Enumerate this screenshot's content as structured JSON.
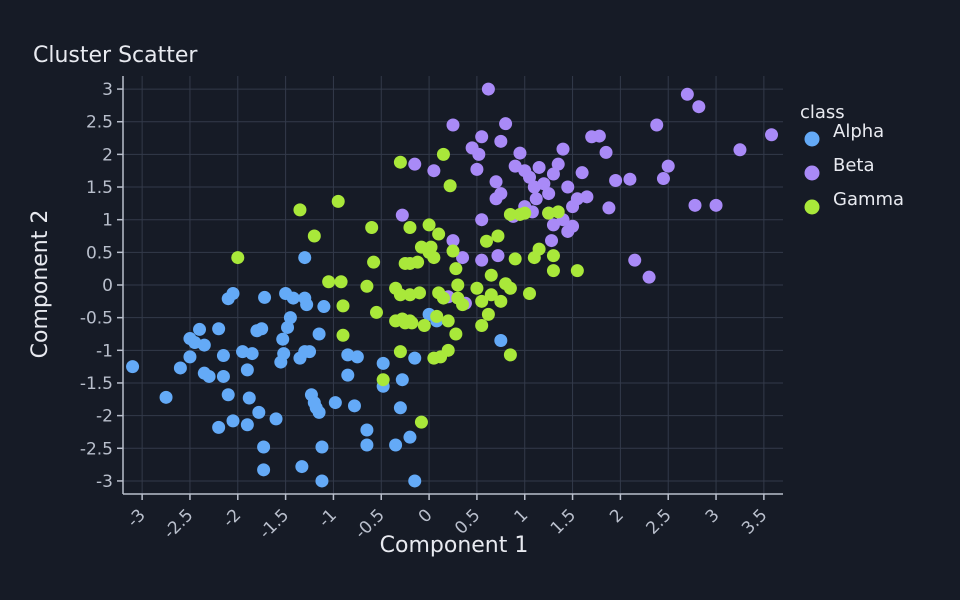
{
  "chart_data": {
    "type": "scatter",
    "title": "Cluster Scatter",
    "xlabel": "Component 1",
    "ylabel": "Component 2",
    "xlim": [
      -3.2,
      3.7
    ],
    "ylim": [
      -3.2,
      3.2
    ],
    "x_ticks": [
      -3,
      -2.5,
      -2,
      -1.5,
      -1,
      -0.5,
      0,
      0.5,
      1,
      1.5,
      2,
      2.5,
      3,
      3.5
    ],
    "y_ticks": [
      3,
      2.5,
      2,
      1.5,
      1,
      0.5,
      0,
      -0.5,
      -1,
      -1.5,
      -2,
      -2.5,
      -3
    ],
    "grid": true,
    "legend": {
      "title": "class",
      "placement": "right"
    },
    "series": [
      {
        "name": "Alpha",
        "color": "#64aaf7",
        "points": [
          [
            -3.1,
            -1.25
          ],
          [
            -2.75,
            -1.72
          ],
          [
            -2.6,
            -1.27
          ],
          [
            -2.5,
            -0.82
          ],
          [
            -2.5,
            -1.1
          ],
          [
            -2.45,
            -0.88
          ],
          [
            -2.4,
            -0.68
          ],
          [
            -2.35,
            -0.92
          ],
          [
            -2.35,
            -1.35
          ],
          [
            -2.3,
            -1.4
          ],
          [
            -2.2,
            -0.67
          ],
          [
            -2.2,
            -2.18
          ],
          [
            -2.15,
            -1.08
          ],
          [
            -2.15,
            -1.4
          ],
          [
            -2.1,
            -1.68
          ],
          [
            -2.1,
            -0.21
          ],
          [
            -2.05,
            -0.13
          ],
          [
            -2.05,
            -2.08
          ],
          [
            -1.95,
            -1.02
          ],
          [
            -1.9,
            -1.3
          ],
          [
            -1.9,
            -2.14
          ],
          [
            -1.88,
            -1.73
          ],
          [
            -1.85,
            -1.05
          ],
          [
            -1.8,
            -0.7
          ],
          [
            -1.78,
            -1.95
          ],
          [
            -1.75,
            -0.67
          ],
          [
            -1.73,
            -2.48
          ],
          [
            -1.73,
            -2.83
          ],
          [
            -1.72,
            -0.19
          ],
          [
            -1.6,
            -2.05
          ],
          [
            -1.55,
            -1.18
          ],
          [
            -1.53,
            -0.83
          ],
          [
            -1.52,
            -1.05
          ],
          [
            -1.5,
            -0.13
          ],
          [
            -1.48,
            -0.65
          ],
          [
            -1.45,
            -0.5
          ],
          [
            -1.42,
            -0.2
          ],
          [
            -1.35,
            -1.12
          ],
          [
            -1.33,
            -2.78
          ],
          [
            -1.3,
            -1.02
          ],
          [
            -1.3,
            -0.2
          ],
          [
            -1.3,
            0.42
          ],
          [
            -1.28,
            -0.3
          ],
          [
            -1.25,
            -1.02
          ],
          [
            -1.23,
            -1.68
          ],
          [
            -1.2,
            -1.8
          ],
          [
            -1.18,
            -1.88
          ],
          [
            -1.15,
            -1.95
          ],
          [
            -1.15,
            -0.75
          ],
          [
            -1.12,
            -3.0
          ],
          [
            -1.12,
            -2.48
          ],
          [
            -1.1,
            -0.33
          ],
          [
            -0.98,
            -1.8
          ],
          [
            -0.85,
            -1.07
          ],
          [
            -0.85,
            -1.38
          ],
          [
            -0.78,
            -1.85
          ],
          [
            -0.75,
            -1.1
          ],
          [
            -0.65,
            -2.22
          ],
          [
            -0.65,
            -2.45
          ],
          [
            -0.48,
            -1.2
          ],
          [
            -0.35,
            -2.45
          ],
          [
            -0.3,
            -1.88
          ],
          [
            -0.28,
            -1.45
          ],
          [
            -0.2,
            -2.33
          ],
          [
            -0.15,
            -3.0
          ],
          [
            0.0,
            -0.45
          ],
          [
            0.08,
            -0.55
          ],
          [
            0.75,
            -0.85
          ],
          [
            -0.15,
            -1.12
          ],
          [
            -0.48,
            -1.55
          ]
        ]
      },
      {
        "name": "Beta",
        "color": "#a98af7",
        "points": [
          [
            0.62,
            3.0
          ],
          [
            0.25,
            2.45
          ],
          [
            0.55,
            2.27
          ],
          [
            0.45,
            2.1
          ],
          [
            0.52,
            2.0
          ],
          [
            0.5,
            1.77
          ],
          [
            0.8,
            2.47
          ],
          [
            0.75,
            2.2
          ],
          [
            0.95,
            2.02
          ],
          [
            0.9,
            1.82
          ],
          [
            1.0,
            1.75
          ],
          [
            1.05,
            1.65
          ],
          [
            1.1,
            1.5
          ],
          [
            1.15,
            1.8
          ],
          [
            1.2,
            1.55
          ],
          [
            1.25,
            1.4
          ],
          [
            1.3,
            1.7
          ],
          [
            1.35,
            1.85
          ],
          [
            1.4,
            2.08
          ],
          [
            1.45,
            1.5
          ],
          [
            1.5,
            1.2
          ],
          [
            1.55,
            1.32
          ],
          [
            1.6,
            1.72
          ],
          [
            1.65,
            1.35
          ],
          [
            1.7,
            2.27
          ],
          [
            1.78,
            2.28
          ],
          [
            1.85,
            2.03
          ],
          [
            1.95,
            1.6
          ],
          [
            2.1,
            1.62
          ],
          [
            2.38,
            2.45
          ],
          [
            2.45,
            1.63
          ],
          [
            2.5,
            1.82
          ],
          [
            2.7,
            2.92
          ],
          [
            2.82,
            2.73
          ],
          [
            2.78,
            1.22
          ],
          [
            3.0,
            1.22
          ],
          [
            3.25,
            2.07
          ],
          [
            3.58,
            2.3
          ],
          [
            2.15,
            0.38
          ],
          [
            2.3,
            0.12
          ],
          [
            -0.15,
            1.85
          ],
          [
            -0.28,
            1.07
          ],
          [
            0.05,
            1.75
          ],
          [
            0.25,
            0.68
          ],
          [
            0.35,
            0.42
          ],
          [
            0.55,
            0.38
          ],
          [
            0.55,
            1.0
          ],
          [
            0.7,
            1.58
          ],
          [
            0.7,
            1.32
          ],
          [
            0.75,
            1.4
          ],
          [
            0.72,
            0.45
          ],
          [
            0.88,
            1.05
          ],
          [
            1.0,
            1.2
          ],
          [
            1.08,
            1.12
          ],
          [
            1.12,
            1.32
          ],
          [
            1.25,
            1.1
          ],
          [
            1.28,
            0.68
          ],
          [
            1.3,
            0.92
          ],
          [
            1.4,
            1.0
          ],
          [
            1.45,
            0.82
          ],
          [
            1.5,
            0.9
          ],
          [
            1.88,
            1.18
          ],
          [
            0.38,
            -0.28
          ],
          [
            0.2,
            -0.18
          ]
        ]
      },
      {
        "name": "Gamma",
        "color": "#a9e83a",
        "points": [
          [
            -2.0,
            0.42
          ],
          [
            -1.35,
            1.15
          ],
          [
            -1.2,
            0.75
          ],
          [
            -1.05,
            0.05
          ],
          [
            -0.95,
            1.28
          ],
          [
            -0.92,
            0.05
          ],
          [
            -0.9,
            -0.32
          ],
          [
            -0.9,
            -0.77
          ],
          [
            -0.6,
            0.88
          ],
          [
            -0.58,
            0.35
          ],
          [
            -0.55,
            -0.42
          ],
          [
            -0.48,
            -1.45
          ],
          [
            -0.3,
            1.88
          ],
          [
            -0.2,
            0.88
          ],
          [
            -0.25,
            0.33
          ],
          [
            -0.2,
            0.33
          ],
          [
            -0.12,
            0.35
          ],
          [
            -0.08,
            0.58
          ],
          [
            -0.35,
            -0.05
          ],
          [
            -0.3,
            -0.15
          ],
          [
            -0.2,
            -0.15
          ],
          [
            -0.1,
            -0.12
          ],
          [
            -0.35,
            -0.55
          ],
          [
            -0.28,
            -0.52
          ],
          [
            -0.2,
            -0.55
          ],
          [
            -0.18,
            -0.58
          ],
          [
            -0.05,
            -0.62
          ],
          [
            -0.3,
            -1.02
          ],
          [
            -0.25,
            -0.58
          ],
          [
            0.0,
            0.92
          ],
          [
            0.02,
            0.58
          ],
          [
            0.05,
            0.42
          ],
          [
            0.1,
            0.78
          ],
          [
            0.15,
            2.0
          ],
          [
            0.22,
            1.52
          ],
          [
            0.25,
            0.52
          ],
          [
            0.28,
            0.25
          ],
          [
            0.3,
            0.0
          ],
          [
            0.3,
            -0.2
          ],
          [
            0.35,
            -0.3
          ],
          [
            0.15,
            -0.2
          ],
          [
            0.1,
            -0.12
          ],
          [
            0.08,
            -0.48
          ],
          [
            0.2,
            -0.55
          ],
          [
            0.28,
            -0.75
          ],
          [
            0.2,
            -1.0
          ],
          [
            0.12,
            -1.1
          ],
          [
            0.05,
            -1.12
          ],
          [
            -0.08,
            -2.1
          ],
          [
            0.5,
            -0.05
          ],
          [
            0.55,
            -0.25
          ],
          [
            0.6,
            0.67
          ],
          [
            0.62,
            -0.45
          ],
          [
            0.55,
            -0.62
          ],
          [
            0.65,
            0.15
          ],
          [
            0.72,
            0.75
          ],
          [
            0.75,
            -0.25
          ],
          [
            0.8,
            0.02
          ],
          [
            0.85,
            -0.05
          ],
          [
            0.85,
            1.08
          ],
          [
            0.9,
            0.4
          ],
          [
            1.05,
            -0.13
          ],
          [
            1.1,
            0.42
          ],
          [
            1.15,
            0.55
          ],
          [
            1.25,
            1.1
          ],
          [
            1.3,
            0.22
          ],
          [
            1.3,
            0.45
          ],
          [
            1.35,
            1.12
          ],
          [
            1.55,
            0.22
          ],
          [
            0.85,
            -1.07
          ],
          [
            0.95,
            1.08
          ],
          [
            1.0,
            1.1
          ],
          [
            -0.65,
            -0.02
          ],
          [
            0.65,
            -0.15
          ],
          [
            0.0,
            0.5
          ]
        ]
      }
    ]
  }
}
